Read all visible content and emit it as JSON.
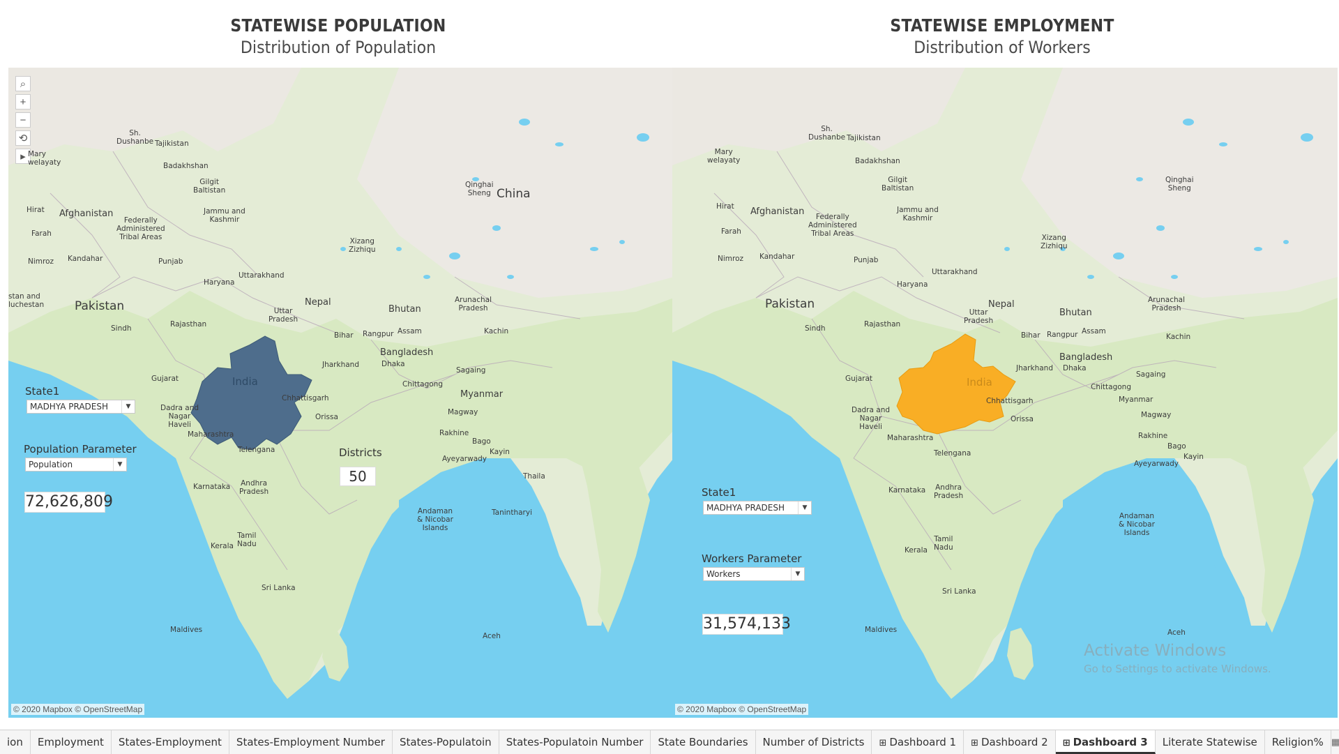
{
  "left": {
    "title": "STATEWISE POPULATION",
    "subtitle": "Distribution of Population",
    "state_label": "State1",
    "state_value": "MADHYA PRADESH",
    "param_label": "Population Parameter",
    "param_value": "Population",
    "big_value": "72,626,809",
    "districts_label": "Districts",
    "districts_value": "50",
    "highlight_color": "#4e6d8c",
    "highlight_label": "India"
  },
  "right": {
    "title": "STATEWISE EMPLOYMENT",
    "subtitle": "Distribution of Workers",
    "state_label": "State1",
    "state_value": "MADHYA PRADESH",
    "param_label": "Workers Parameter",
    "param_value": "Workers",
    "big_value": "31,574,133",
    "highlight_color": "#f9ae25",
    "highlight_label": "India"
  },
  "attribution": "© 2020 Mapbox © OpenStreetMap",
  "map_labels_left": {
    "pakistan": "Pakistan",
    "china": "China",
    "nepal": "Nepal",
    "bhutan": "Bhutan",
    "bangladesh": "Bangladesh",
    "myanmar": "Myanmar",
    "afghanistan": "Afghanistan",
    "tajikistan": "Tajikistan",
    "srilanka": "Sri Lanka",
    "maldives": "Maldives",
    "aceh": "Aceh",
    "rajasthan": "Rajasthan",
    "gujarat": "Gujarat",
    "maharashtra": "Maharashtra",
    "karnataka": "Karnataka",
    "kerala": "Kerala",
    "tamilnadu": "Tamil\nNadu",
    "telengana": "Telengana",
    "andhra": "Andhra\nPradesh",
    "orissa": "Orissa",
    "chhattisgarh": "Chhattisgarh",
    "jharkhand": "Jharkhand",
    "bihar": "Bihar",
    "uttarpradesh": "Uttar\nPradesh",
    "haryana": "Haryana",
    "punjab": "Punjab",
    "uttarakhand": "Uttarakhand",
    "jammu": "Jammu and\nKashmir",
    "gilgit": "Gilgit\nBaltistan",
    "badakhshan": "Badakhshan",
    "xizang": "Xizang\nZizhiqu",
    "qinghai": "Qinghai\nSheng",
    "sindh": "Sindh",
    "kandahar": "Kandahar",
    "nimroz": "Nimroz",
    "farah": "Farah",
    "hirat": "Hirat",
    "fata": "Federally\nAdministered\nTribal Areas",
    "assam": "Assam",
    "rangpur": "Rangpur",
    "dhaka": "Dhaka",
    "chittagong": "Chittagong",
    "sagaing": "Sagaing",
    "kachin": "Kachin",
    "magway": "Magway",
    "rakhine": "Rakhine",
    "bago": "Bago",
    "ayeyarwady": "Ayeyarwady",
    "kayin": "Kayin",
    "andaman": "Andaman\n& Nicobar\nIslands",
    "dadra": "Dadra and\nNagar\nHaveli",
    "arunachal": "Arunachal\nPradesh",
    "mary": "Mary\nwelayaty",
    "dushanbe": "Sh.\nDushanbe",
    "tanintharyi": "Tanintharyi",
    "thaila": "Thaila",
    "balochistan": "stan and\nluchestan"
  },
  "tabs": [
    {
      "label": "ion"
    },
    {
      "label": "Employment"
    },
    {
      "label": "States-Employment"
    },
    {
      "label": "States-Employment Number"
    },
    {
      "label": "States-Populatoin"
    },
    {
      "label": "States-Populatoin Number"
    },
    {
      "label": "State Boundaries"
    },
    {
      "label": "Number of Districts"
    },
    {
      "label": "Dashboard 1"
    },
    {
      "label": "Dashboard 2"
    },
    {
      "label": "Dashboard 3"
    },
    {
      "label": "Literate Statewise"
    },
    {
      "label": "Religion%"
    }
  ],
  "watermark": {
    "line1": "Activate Windows",
    "line2": "Go to Settings to activate Windows."
  }
}
